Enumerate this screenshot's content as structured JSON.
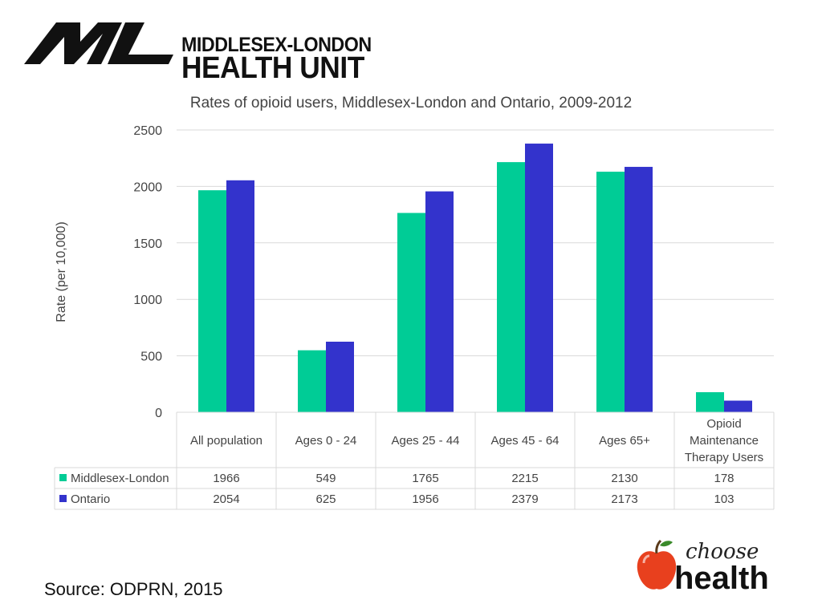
{
  "logo": {
    "line1": "MIDDLESEX-LONDON",
    "line2": "HEALTH UNIT",
    "mark": "ML"
  },
  "source": "Source: ODPRN, 2015",
  "choose_logo": {
    "line1": "choose",
    "line2": "health"
  },
  "colors": {
    "middlesex": "#00cc96",
    "ontario": "#3333cc",
    "grid": "#d9d9d9",
    "apple": "#e8401e"
  },
  "chart_data": {
    "type": "bar",
    "title": "Rates of opioid users, Middlesex-London and Ontario, 2009-2012",
    "xlabel": "",
    "ylabel": "Rate (per 10,000)",
    "ylim": [
      0,
      2500
    ],
    "yticks": [
      0,
      500,
      1000,
      1500,
      2000,
      2500
    ],
    "grid": true,
    "legend": "data-table",
    "categories": [
      [
        "All population"
      ],
      [
        "Ages 0 - 24"
      ],
      [
        "Ages 25 - 44"
      ],
      [
        "Ages 45 - 64"
      ],
      [
        "Ages 65+"
      ],
      [
        "Opioid",
        "Maintenance",
        "Therapy Users"
      ]
    ],
    "series": [
      {
        "name": "Middlesex-London",
        "values": [
          1966,
          549,
          1765,
          2215,
          2130,
          178
        ]
      },
      {
        "name": "Ontario",
        "values": [
          2054,
          625,
          1956,
          2379,
          2173,
          103
        ]
      }
    ]
  }
}
